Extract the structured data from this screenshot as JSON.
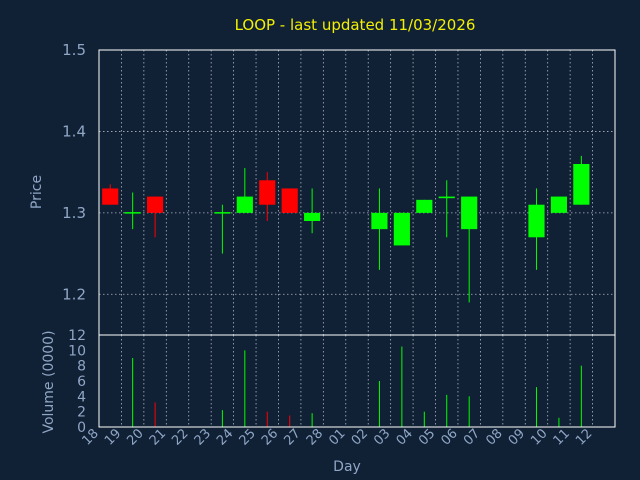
{
  "chart_data": {
    "type": "candlestick",
    "title": "LOOP - last updated 11/03/2026",
    "xlabel": "Day",
    "ylabel": "Price",
    "volume_label": "Volume (0000)",
    "colors": {
      "background": "#102035",
      "up": "#00ff00",
      "down": "#ff0000",
      "title": "#f3f000",
      "axis_text": "#8fa6c5"
    },
    "price_ylim": [
      1.15,
      1.5
    ],
    "price_yticks": [
      "1.2",
      "1.3",
      "1.4",
      "1.5"
    ],
    "volume_ylim": [
      0,
      12
    ],
    "volume_yticks": [
      "0",
      "2",
      "4",
      "6",
      "8",
      "10",
      "12"
    ],
    "x_labels": [
      "18",
      "19",
      "20",
      "21",
      "22",
      "23",
      "24",
      "25",
      "26",
      "27",
      "28",
      "01",
      "02",
      "03",
      "04",
      "05",
      "06",
      "07",
      "08",
      "09",
      "10",
      "11",
      "12"
    ],
    "candles": [
      {
        "day": "18",
        "open": 1.33,
        "high": 1.335,
        "low": 1.31,
        "close": 1.31,
        "volume": 0.0
      },
      {
        "day": "19",
        "open": 1.3,
        "high": 1.325,
        "low": 1.28,
        "close": 1.3,
        "volume": 9.0
      },
      {
        "day": "20",
        "open": 1.32,
        "high": 1.32,
        "low": 1.27,
        "close": 1.3,
        "volume": 3.2
      },
      {
        "day": "23",
        "open": 1.3,
        "high": 1.31,
        "low": 1.25,
        "close": 1.3,
        "volume": 2.2
      },
      {
        "day": "24",
        "open": 1.3,
        "high": 1.355,
        "low": 1.3,
        "close": 1.32,
        "volume": 10.0
      },
      {
        "day": "25",
        "open": 1.34,
        "high": 1.35,
        "low": 1.29,
        "close": 1.31,
        "volume": 2.0
      },
      {
        "day": "26",
        "open": 1.33,
        "high": 1.33,
        "low": 1.3,
        "close": 1.3,
        "volume": 1.5
      },
      {
        "day": "27",
        "open": 1.29,
        "high": 1.33,
        "low": 1.275,
        "close": 1.3,
        "volume": 1.8
      },
      {
        "day": "02",
        "open": 1.28,
        "high": 1.33,
        "low": 1.23,
        "close": 1.3,
        "volume": 6.0
      },
      {
        "day": "03",
        "open": 1.26,
        "high": 1.3,
        "low": 1.26,
        "close": 1.3,
        "volume": 10.5
      },
      {
        "day": "04",
        "open": 1.3,
        "high": 1.316,
        "low": 1.3,
        "close": 1.316,
        "volume": 2.0
      },
      {
        "day": "05",
        "open": 1.318,
        "high": 1.34,
        "low": 1.27,
        "close": 1.32,
        "volume": 4.2
      },
      {
        "day": "06",
        "open": 1.28,
        "high": 1.32,
        "low": 1.19,
        "close": 1.32,
        "volume": 4.0
      },
      {
        "day": "09",
        "open": 1.27,
        "high": 1.33,
        "low": 1.23,
        "close": 1.31,
        "volume": 5.2
      },
      {
        "day": "10",
        "open": 1.3,
        "high": 1.32,
        "low": 1.3,
        "close": 1.32,
        "volume": 1.2
      },
      {
        "day": "11",
        "open": 1.31,
        "high": 1.37,
        "low": 1.31,
        "close": 1.36,
        "volume": 8.0
      }
    ]
  }
}
